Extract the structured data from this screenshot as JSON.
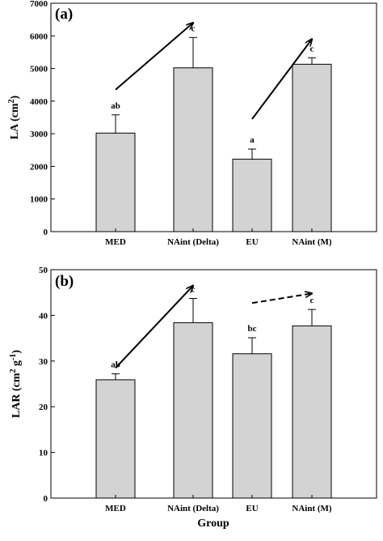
{
  "chart_data": [
    {
      "type": "bar",
      "panel_label": "(a)",
      "categories": [
        "MED",
        "NAint (Delta)",
        "EU",
        "NAint (M)"
      ],
      "values": [
        3020,
        5020,
        2220,
        5130
      ],
      "errors": [
        560,
        930,
        310,
        200
      ],
      "significance": [
        "ab",
        "c",
        "a",
        "c"
      ],
      "ylabel": {
        "base": "LA (cm",
        "sup": "2",
        "end": ")"
      },
      "xlabel": "",
      "ylim": [
        0,
        7000
      ],
      "yticks": [
        "0",
        "1000",
        "2000",
        "3000",
        "4000",
        "5000",
        "6000",
        "7000"
      ],
      "bar_color": "#d3d3d3",
      "arrows": [
        {
          "from": {
            "x": "MED",
            "y": 4350
          },
          "to": {
            "x": "NAint (Delta)",
            "y": 6400
          },
          "style": "solid"
        },
        {
          "from": {
            "x": "EU",
            "y": 3450
          },
          "to": {
            "x": "NAint (M)",
            "y": 5900
          },
          "style": "solid"
        }
      ]
    },
    {
      "type": "bar",
      "panel_label": "(b)",
      "categories": [
        "MED",
        "NAint (Delta)",
        "EU",
        "NAint (M)"
      ],
      "values": [
        25.9,
        38.4,
        31.6,
        37.7
      ],
      "errors": [
        1.3,
        5.3,
        3.5,
        3.6
      ],
      "significance": [
        "ab",
        "c",
        "bc",
        "c"
      ],
      "ylabel": {
        "base": "LAR (cm",
        "sup1": "2",
        "mid": " g",
        "sup2": "-1",
        "end": ")"
      },
      "xlabel": "Group",
      "ylim": [
        0,
        50
      ],
      "yticks": [
        "0",
        "10",
        "20",
        "30",
        "40",
        "50"
      ],
      "bar_color": "#d3d3d3",
      "arrows": [
        {
          "from": {
            "x": "MED",
            "y": 28.5
          },
          "to": {
            "x": "NAint (Delta)",
            "y": 46.5
          },
          "style": "solid"
        },
        {
          "from": {
            "x": "EU",
            "y": 42.7
          },
          "to": {
            "x": "NAint (M)",
            "y": 44.8
          },
          "style": "dashed"
        }
      ]
    }
  ]
}
